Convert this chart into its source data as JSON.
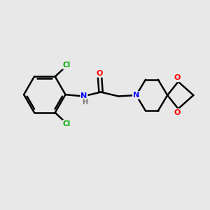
{
  "background_color": "#e8e8e8",
  "bond_color": "#000000",
  "bond_width": 1.8,
  "atom_colors": {
    "C": "#000000",
    "N": "#0000ff",
    "O": "#ff0000",
    "Cl": "#00aa00",
    "H": "#777777"
  },
  "figsize": [
    3.0,
    3.0
  ],
  "dpi": 100,
  "xlim": [
    0,
    10
  ],
  "ylim": [
    0,
    10
  ]
}
